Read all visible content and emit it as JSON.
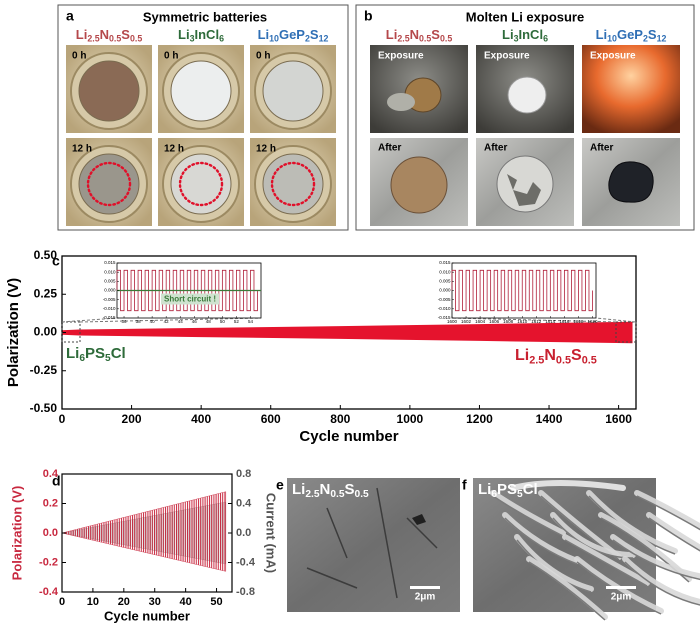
{
  "panel_a": {
    "letter": "a",
    "title": "Symmetric batteries",
    "columns": [
      [
        "Li",
        "2.5",
        "N",
        "0.5",
        "S",
        "0.5"
      ],
      [
        "Li",
        "3",
        "InCl",
        "6"
      ],
      [
        "Li",
        "10",
        "GeP",
        "2",
        "S",
        "12"
      ]
    ],
    "rows": [
      "0 h",
      "12 h"
    ]
  },
  "panel_b": {
    "letter": "b",
    "title": "Molten Li exposure",
    "columns": [
      [
        "Li",
        "2.5",
        "N",
        "0.5",
        "S",
        "0.5"
      ],
      [
        "Li",
        "3",
        "InCl",
        "6"
      ],
      [
        "Li",
        "10",
        "GeP",
        "2",
        "S",
        "12"
      ]
    ],
    "rows": [
      "Exposure",
      "After"
    ]
  },
  "chart_data": [
    {
      "type": "band",
      "letter": "c",
      "xlabel": "Cycle number",
      "ylabel": "Polarization (V)",
      "xlim": [
        0,
        1650
      ],
      "xticks": [
        0,
        200,
        400,
        600,
        800,
        1000,
        1200,
        1400,
        1600
      ],
      "ylim": [
        -0.5,
        0.5
      ],
      "yticks": [
        {
          "value": -0.5,
          "label": "-0.50"
        },
        {
          "value": -0.25,
          "label": "-0.25"
        },
        {
          "value": 0,
          "label": "0.00"
        },
        {
          "value": 0.25,
          "label": "0.25"
        },
        {
          "value": 0.5,
          "label": "0.50"
        }
      ],
      "color": "#e5132d",
      "x": [
        0,
        50,
        400,
        800,
        1200,
        1640
      ],
      "upper": [
        0.015,
        0.02,
        0.03,
        0.042,
        0.055,
        0.07
      ],
      "lower": [
        -0.015,
        -0.02,
        -0.03,
        -0.042,
        -0.055,
        -0.07
      ],
      "annotations": [
        {
          "text": [
            "Li",
            "6",
            "PS",
            "5",
            "Cl"
          ],
          "color": "#2e6b3a"
        },
        {
          "text": [
            "Li",
            "2.5",
            "N",
            "0.5",
            "S",
            "0.5"
          ],
          "color": "#c8202f"
        }
      ],
      "insets": [
        {
          "xlim": [
            35,
            55.5
          ],
          "xticks": [
            36,
            38,
            40,
            42,
            44,
            46,
            48,
            50,
            52,
            54
          ],
          "ylim": [
            -0.015,
            0.015
          ],
          "yticks": [
            -0.015,
            {
              "value": -0.01,
              "label": "-0.010"
            },
            -0.005,
            {
              "value": 0,
              "label": "0.000"
            },
            0.005,
            {
              "value": 0.01,
              "label": "0.010"
            },
            0.015
          ],
          "amplitude": 0.011,
          "color": "#b0203a",
          "annotation": "Short circuit !",
          "line_value": 0,
          "line_color": "#3a7a3a"
        },
        {
          "xlim": [
            1600,
            1620.5
          ],
          "xticks": [
            1600,
            1602,
            1604,
            1606,
            1608,
            1610,
            1612,
            1614,
            1616,
            1618,
            1620
          ],
          "ylim": [
            -0.015,
            0.015
          ],
          "yticks": [
            -0.015,
            {
              "value": -0.01,
              "label": "-0.010"
            },
            -0.005,
            {
              "value": 0,
              "label": "0.000"
            },
            0.005,
            {
              "value": 0.01,
              "label": "0.010"
            },
            0.015
          ],
          "amplitude": 0.011,
          "color": "#b0203a"
        }
      ]
    },
    {
      "type": "dual",
      "letter": "d",
      "xlabel": "Cycle number",
      "ylabel": "Polarization (V)",
      "y2label": "Current (mA)",
      "xlim": [
        0,
        55
      ],
      "xticks": [
        0,
        10,
        20,
        30,
        40,
        50
      ],
      "ylim": [
        -0.4,
        0.4
      ],
      "yticks": [
        -0.4,
        -0.2,
        {
          "value": 0,
          "label": "0.0"
        },
        0.2,
        0.4
      ],
      "y2lim": [
        -0.8,
        0.8
      ],
      "y2ticks": [
        -0.8,
        -0.4,
        {
          "value": 0,
          "label": "0.0"
        },
        0.4,
        0.8
      ],
      "x": [
        0,
        53
      ],
      "series": [
        {
          "color": "#9a9a9a",
          "axis": "y2",
          "upper": [
            0,
            0.42
          ],
          "lower": [
            0,
            -0.42
          ]
        },
        {
          "color": "#c8283f",
          "upper": [
            0,
            0.28
          ],
          "lower": [
            0,
            -0.26
          ]
        }
      ]
    }
  ],
  "panel_e": {
    "letter": "e",
    "label": [
      "Li",
      "2.5",
      "N",
      "0.5",
      "S",
      "0.5"
    ],
    "scale": "2μm"
  },
  "panel_f": {
    "letter": "f",
    "label": [
      "Li",
      "6",
      "PS",
      "5",
      "Cl"
    ],
    "scale": "2μm"
  }
}
